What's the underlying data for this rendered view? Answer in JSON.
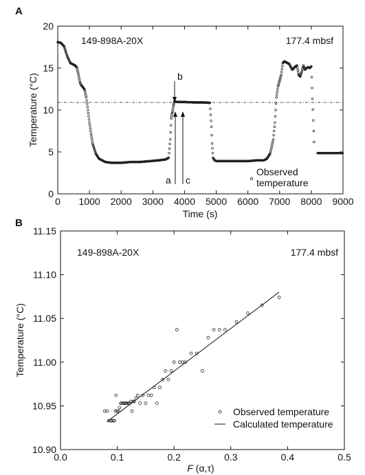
{
  "chart_data": [
    {
      "panel_label": "A",
      "type": "scatter",
      "xlabel": "Time (s)",
      "ylabel": "Temperature (°C)",
      "xlim": [
        0,
        9000
      ],
      "ylim": [
        0,
        20
      ],
      "xticks": [
        "0",
        "1000",
        "2000",
        "3000",
        "4000",
        "5000",
        "6000",
        "7000",
        "8000",
        "9000"
      ],
      "yticks": [
        "0",
        "5",
        "10",
        "15",
        "20"
      ],
      "annotations": {
        "core_id": "149-898A-20X",
        "depth": "177.4 mbsf",
        "mark_a": "a",
        "mark_b": "b",
        "mark_c": "c"
      },
      "reference_line_y": 10.9,
      "series": [
        {
          "name": "Observed temperature",
          "x": [
            0,
            100,
            200,
            300,
            350,
            400,
            500,
            550,
            600,
            650,
            700,
            750,
            800,
            850,
            900,
            950,
            1000,
            1050,
            1100,
            1200,
            1300,
            1400,
            1500,
            1700,
            2000,
            2300,
            2600,
            2900,
            3200,
            3400,
            3500,
            3550,
            3580,
            3600,
            3620,
            3650,
            3680,
            3700,
            3800,
            4000,
            4300,
            4600,
            4800,
            4850,
            4870,
            4900,
            4950,
            5000,
            5200,
            5500,
            6000,
            6300,
            6500,
            6600,
            6700,
            6800,
            6850,
            6900,
            6950,
            7000,
            7050,
            7100,
            7150,
            7200,
            7300,
            7400,
            7500,
            7550,
            7600,
            7650,
            7700,
            7750,
            7800,
            7850,
            7900,
            7950,
            8000,
            8100,
            8200,
            8400,
            8600,
            8800,
            9000
          ],
          "y": [
            18.1,
            18.0,
            17.6,
            16.4,
            16.0,
            15.6,
            15.4,
            15.3,
            15.1,
            14.3,
            13.3,
            12.9,
            12.7,
            12.4,
            11.5,
            10.0,
            8.5,
            7.2,
            6.0,
            4.8,
            4.2,
            4.0,
            3.8,
            3.7,
            3.7,
            3.8,
            3.8,
            3.9,
            4.0,
            4.1,
            4.3,
            6.5,
            9.0,
            9.5,
            9.8,
            10.5,
            11.0,
            11.0,
            10.95,
            10.95,
            10.9,
            10.9,
            10.85,
            8.0,
            6.0,
            4.3,
            4.0,
            3.9,
            3.9,
            3.9,
            3.9,
            4.0,
            4.0,
            4.2,
            4.8,
            6.5,
            8.5,
            11.5,
            12.8,
            13.5,
            14.2,
            15.6,
            15.8,
            15.7,
            15.5,
            14.8,
            15.2,
            15.3,
            14.2,
            14.0,
            14.6,
            15.3,
            14.8,
            15.0,
            15.1,
            15.0,
            15.2,
            4.9,
            4.85,
            4.85,
            4.85,
            4.85,
            4.85
          ]
        }
      ]
    },
    {
      "panel_label": "B",
      "type": "scatter",
      "xlabel": "F (α,τ)",
      "ylabel": "Temperature (°C)",
      "xlim": [
        0,
        0.5
      ],
      "ylim": [
        10.9,
        11.15
      ],
      "xticks": [
        "0.0",
        "0.1",
        "0.2",
        "0.3",
        "0.4",
        "0.5"
      ],
      "yticks": [
        "10.90",
        "10.95",
        "11.00",
        "11.05",
        "11.10",
        "11.15"
      ],
      "annotations": {
        "core_id": "149-898A-20X",
        "depth": "177.4 mbsf"
      },
      "legend": [
        "Observed temperature",
        "Calculated temperature"
      ],
      "series": [
        {
          "name": "Observed temperature",
          "x": [
            0.078,
            0.082,
            0.085,
            0.088,
            0.09,
            0.093,
            0.095,
            0.097,
            0.098,
            0.1,
            0.102,
            0.104,
            0.106,
            0.108,
            0.11,
            0.112,
            0.114,
            0.116,
            0.118,
            0.12,
            0.122,
            0.124,
            0.126,
            0.128,
            0.13,
            0.133,
            0.136,
            0.14,
            0.145,
            0.15,
            0.155,
            0.16,
            0.165,
            0.17,
            0.175,
            0.18,
            0.185,
            0.19,
            0.195,
            0.2,
            0.205,
            0.21,
            0.215,
            0.22,
            0.23,
            0.24,
            0.25,
            0.26,
            0.27,
            0.28,
            0.29,
            0.31,
            0.33,
            0.355,
            0.385
          ],
          "y": [
            10.944,
            10.944,
            10.933,
            10.933,
            10.933,
            10.933,
            10.933,
            10.944,
            10.962,
            10.944,
            10.944,
            10.948,
            10.953,
            10.953,
            10.953,
            10.953,
            10.953,
            10.953,
            10.953,
            10.953,
            10.953,
            10.955,
            10.944,
            10.955,
            10.955,
            10.959,
            10.962,
            10.953,
            10.962,
            10.953,
            10.962,
            10.962,
            10.971,
            10.953,
            10.971,
            10.98,
            10.99,
            10.98,
            10.99,
            11.0,
            11.037,
            11.0,
            11.0,
            11.0,
            11.01,
            11.01,
            10.99,
            11.028,
            11.037,
            11.037,
            11.037,
            11.046,
            11.056,
            11.065,
            11.074
          ]
        },
        {
          "name": "Calculated temperature",
          "x": [
            0.082,
            0.385
          ],
          "y": [
            10.932,
            11.08
          ]
        }
      ]
    }
  ]
}
